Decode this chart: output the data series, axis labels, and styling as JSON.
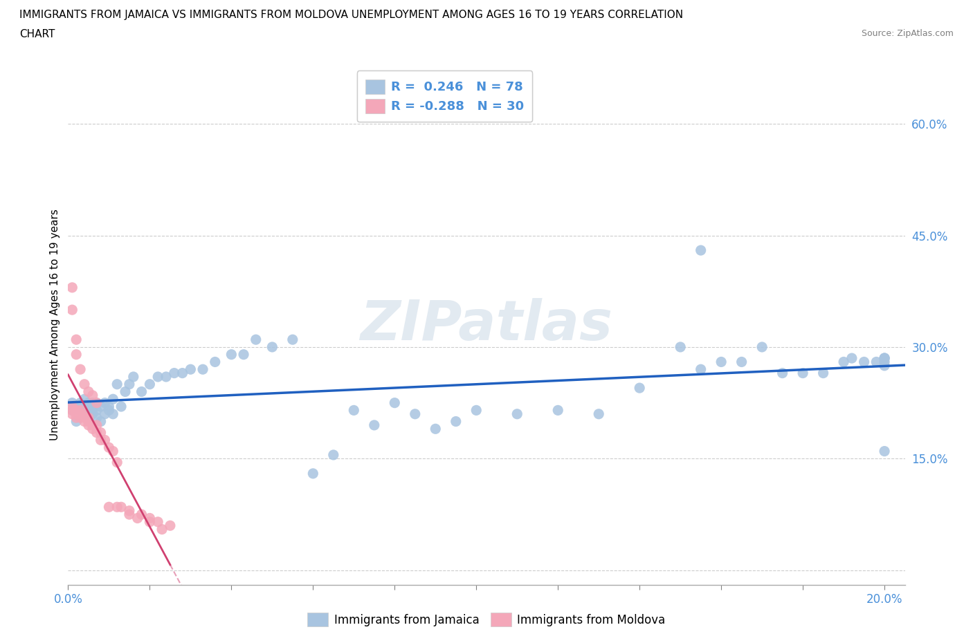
{
  "title_line1": "IMMIGRANTS FROM JAMAICA VS IMMIGRANTS FROM MOLDOVA UNEMPLOYMENT AMONG AGES 16 TO 19 YEARS CORRELATION",
  "title_line2": "CHART",
  "source": "Source: ZipAtlas.com",
  "ylabel": "Unemployment Among Ages 16 to 19 years",
  "xlim": [
    0.0,
    0.205
  ],
  "ylim": [
    -0.02,
    0.68
  ],
  "xticks": [
    0.0,
    0.02,
    0.04,
    0.06,
    0.08,
    0.1,
    0.12,
    0.14,
    0.16,
    0.18,
    0.2
  ],
  "yticks": [
    0.0,
    0.15,
    0.3,
    0.45,
    0.6
  ],
  "grid_color": "#cccccc",
  "background_color": "#ffffff",
  "watermark": "ZIPatlas",
  "jamaica_color": "#a8c4e0",
  "moldova_color": "#f4a7b9",
  "jamaica_R": 0.246,
  "jamaica_N": 78,
  "moldova_R": -0.288,
  "moldova_N": 30,
  "jamaica_line_color": "#2060c0",
  "moldova_line_color": "#d04070",
  "legend_label_jamaica": "Immigrants from Jamaica",
  "legend_label_moldova": "Immigrants from Moldova",
  "jamaica_x": [
    0.001,
    0.001,
    0.002,
    0.002,
    0.003,
    0.003,
    0.003,
    0.004,
    0.004,
    0.004,
    0.005,
    0.005,
    0.005,
    0.006,
    0.006,
    0.006,
    0.007,
    0.007,
    0.007,
    0.008,
    0.008,
    0.009,
    0.009,
    0.01,
    0.01,
    0.011,
    0.011,
    0.012,
    0.013,
    0.014,
    0.015,
    0.016,
    0.018,
    0.02,
    0.022,
    0.024,
    0.026,
    0.028,
    0.03,
    0.033,
    0.036,
    0.04,
    0.043,
    0.046,
    0.05,
    0.055,
    0.06,
    0.065,
    0.07,
    0.075,
    0.08,
    0.085,
    0.09,
    0.095,
    0.1,
    0.11,
    0.12,
    0.13,
    0.14,
    0.15,
    0.155,
    0.16,
    0.165,
    0.17,
    0.175,
    0.18,
    0.185,
    0.19,
    0.192,
    0.195,
    0.198,
    0.2,
    0.2,
    0.2,
    0.2,
    0.2,
    0.2,
    0.155
  ],
  "jamaica_y": [
    0.215,
    0.225,
    0.2,
    0.22,
    0.215,
    0.22,
    0.225,
    0.21,
    0.22,
    0.23,
    0.215,
    0.22,
    0.225,
    0.21,
    0.215,
    0.225,
    0.205,
    0.215,
    0.225,
    0.2,
    0.22,
    0.21,
    0.225,
    0.215,
    0.22,
    0.21,
    0.23,
    0.25,
    0.22,
    0.24,
    0.25,
    0.26,
    0.24,
    0.25,
    0.26,
    0.26,
    0.265,
    0.265,
    0.27,
    0.27,
    0.28,
    0.29,
    0.29,
    0.31,
    0.3,
    0.31,
    0.13,
    0.155,
    0.215,
    0.195,
    0.225,
    0.21,
    0.19,
    0.2,
    0.215,
    0.21,
    0.215,
    0.21,
    0.245,
    0.3,
    0.27,
    0.28,
    0.28,
    0.3,
    0.265,
    0.265,
    0.265,
    0.28,
    0.285,
    0.28,
    0.28,
    0.285,
    0.285,
    0.285,
    0.28,
    0.275,
    0.16,
    0.43
  ],
  "moldova_x": [
    0.001,
    0.001,
    0.001,
    0.002,
    0.002,
    0.002,
    0.003,
    0.003,
    0.003,
    0.004,
    0.004,
    0.004,
    0.005,
    0.005,
    0.005,
    0.006,
    0.006,
    0.007,
    0.007,
    0.008,
    0.008,
    0.009,
    0.01,
    0.011,
    0.012,
    0.013,
    0.015,
    0.017,
    0.02,
    0.023
  ],
  "moldova_y": [
    0.22,
    0.215,
    0.21,
    0.215,
    0.21,
    0.205,
    0.215,
    0.21,
    0.205,
    0.21,
    0.205,
    0.2,
    0.205,
    0.2,
    0.195,
    0.195,
    0.19,
    0.195,
    0.185,
    0.185,
    0.175,
    0.175,
    0.165,
    0.16,
    0.145,
    0.085,
    0.075,
    0.07,
    0.065,
    0.055
  ],
  "moldova_x_extra": [
    0.001,
    0.001,
    0.002,
    0.002,
    0.003,
    0.004,
    0.005,
    0.006,
    0.007,
    0.01,
    0.012,
    0.015,
    0.018,
    0.02,
    0.022,
    0.025
  ],
  "moldova_y_extra": [
    0.38,
    0.35,
    0.31,
    0.29,
    0.27,
    0.25,
    0.24,
    0.235,
    0.225,
    0.085,
    0.085,
    0.08,
    0.075,
    0.07,
    0.065,
    0.06
  ]
}
